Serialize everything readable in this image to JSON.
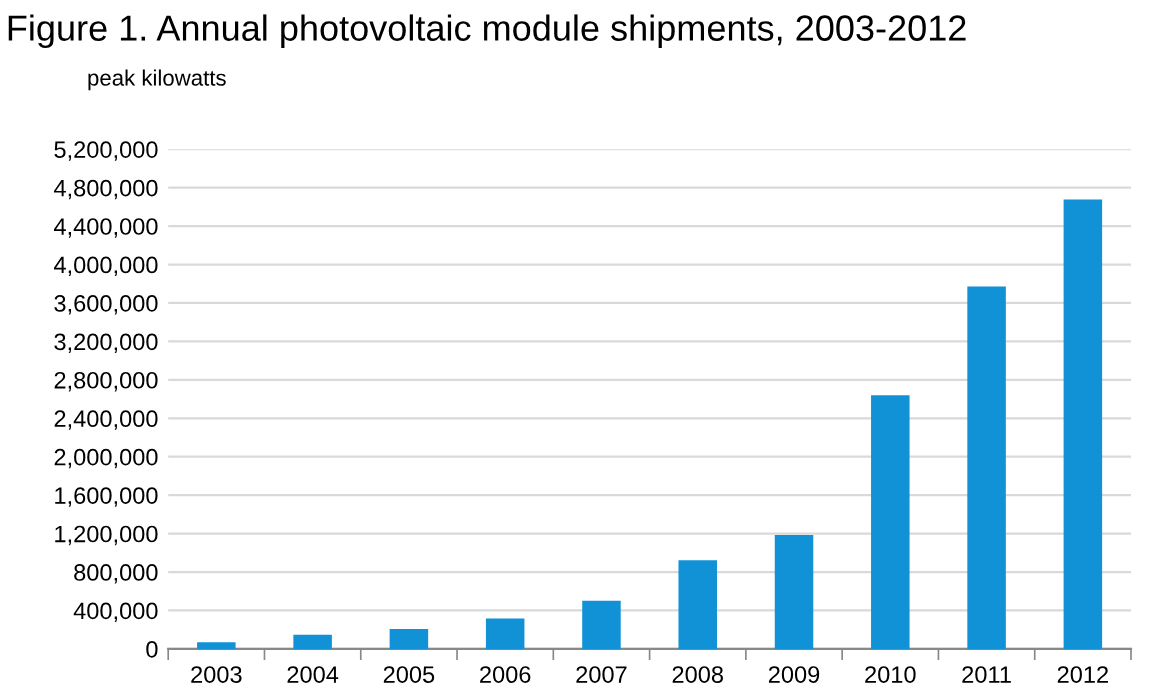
{
  "chart_data": {
    "type": "bar",
    "title": "Figure 1. Annual photovoltaic module shipments, 2003-2012",
    "ylabel": "peak kilowatts",
    "categories": [
      "2003",
      "2004",
      "2005",
      "2006",
      "2007",
      "2008",
      "2009",
      "2010",
      "2011",
      "2012"
    ],
    "values": [
      70000,
      146000,
      208000,
      315000,
      500000,
      923000,
      1185000,
      2640000,
      3770000,
      4677000
    ],
    "color": "#1192d6",
    "ylim": [
      0,
      5200000
    ],
    "yticks": [
      {
        "value": 0,
        "label": "0"
      },
      {
        "value": 400000,
        "label": "400,000"
      },
      {
        "value": 800000,
        "label": "800,000"
      },
      {
        "value": 1200000,
        "label": "1,200,000"
      },
      {
        "value": 1600000,
        "label": "1,600,000"
      },
      {
        "value": 2000000,
        "label": "2,000,000"
      },
      {
        "value": 2400000,
        "label": "2,400,000"
      },
      {
        "value": 2800000,
        "label": "2,800,000"
      },
      {
        "value": 3200000,
        "label": "3,200,000"
      },
      {
        "value": 3600000,
        "label": "3,600,000"
      },
      {
        "value": 4000000,
        "label": "4,000,000"
      },
      {
        "value": 4400000,
        "label": "4,400,000"
      },
      {
        "value": 4800000,
        "label": "4,800,000"
      },
      {
        "value": 5200000,
        "label": "5,200,000"
      }
    ],
    "grid": "y"
  }
}
